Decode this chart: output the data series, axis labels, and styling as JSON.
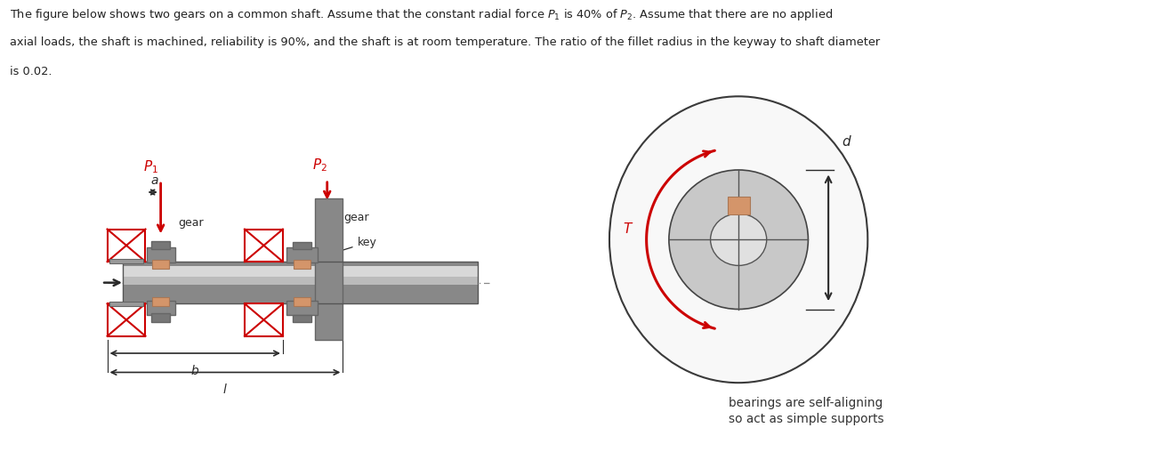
{
  "bg_color": "#ffffff",
  "shaft_color": "#999999",
  "shaft_light": "#cccccc",
  "shaft_dark": "#666666",
  "key_color": "#d4956a",
  "red_color": "#cc0000",
  "dark_color": "#2a2a2a",
  "bearing_bg": "#ffffff",
  "line1": "The figure below shows two gears on a common shaft. Assume that the constant radial force $P_1$ is 40% of $P_2$. Assume that there are no applied",
  "line2": "axial loads, the shaft is machined, reliability is 90%, and the shaft is at room temperature. The ratio of the fillet radius in the keyway to shaft diameter",
  "line3": "is 0.02."
}
